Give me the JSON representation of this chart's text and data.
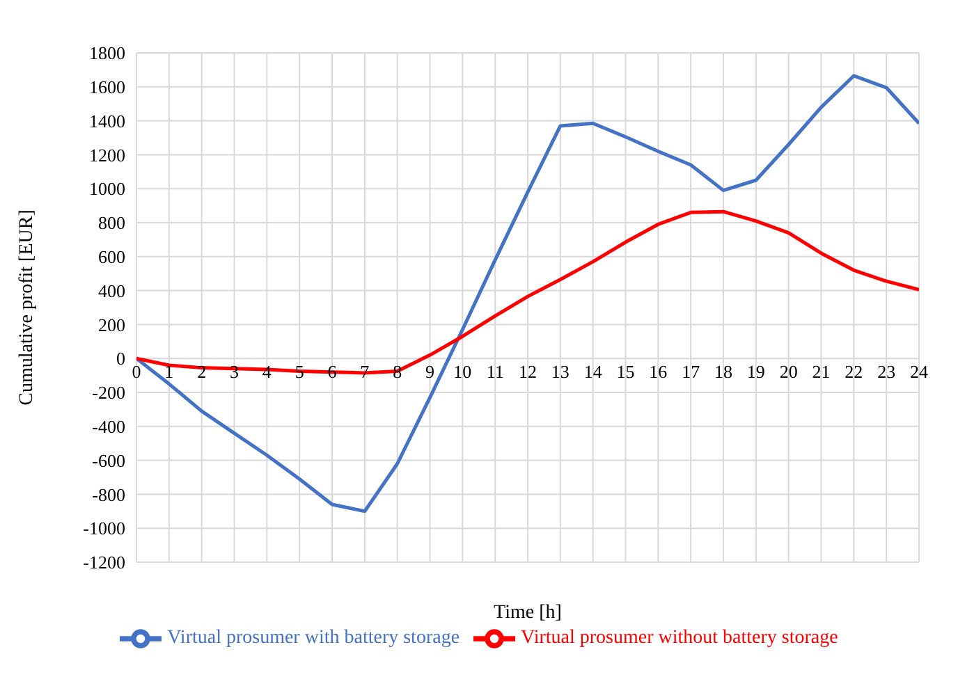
{
  "chart_data": {
    "type": "line",
    "xlabel": "Time [h]",
    "ylabel": "Cumulative profit [EUR]",
    "x": [
      0,
      1,
      2,
      3,
      4,
      5,
      6,
      7,
      8,
      9,
      10,
      11,
      12,
      13,
      14,
      15,
      16,
      17,
      18,
      19,
      20,
      21,
      22,
      23,
      24
    ],
    "xlim": [
      0,
      24
    ],
    "xticks": [
      0,
      1,
      2,
      3,
      4,
      5,
      6,
      7,
      8,
      9,
      10,
      11,
      12,
      13,
      14,
      15,
      16,
      17,
      18,
      19,
      20,
      21,
      22,
      23,
      24
    ],
    "ylim": [
      -1200,
      1800
    ],
    "yticks": [
      -1200,
      -1000,
      -800,
      -600,
      -400,
      -200,
      0,
      200,
      400,
      600,
      800,
      1000,
      1200,
      1400,
      1600,
      1800
    ],
    "grid": true,
    "legend": "bottom",
    "marker": "none",
    "line_style": "solid",
    "series": [
      {
        "name": "Virtual prosumer with battery storage",
        "color": "#4472c4",
        "values": [
          0,
          -150,
          -310,
          -440,
          -570,
          -710,
          -860,
          -900,
          -620,
          -230,
          170,
          580,
          980,
          1370,
          1385,
          1305,
          1220,
          1140,
          990,
          1050,
          1260,
          1480,
          1665,
          1595,
          1385
        ]
      },
      {
        "name": "Virtual prosumer without battery storage",
        "color": "#ff0000",
        "values": [
          0,
          -40,
          -55,
          -60,
          -65,
          -75,
          -80,
          -85,
          -75,
          20,
          130,
          250,
          365,
          465,
          570,
          685,
          790,
          860,
          865,
          810,
          740,
          620,
          520,
          455,
          405
        ]
      }
    ]
  }
}
